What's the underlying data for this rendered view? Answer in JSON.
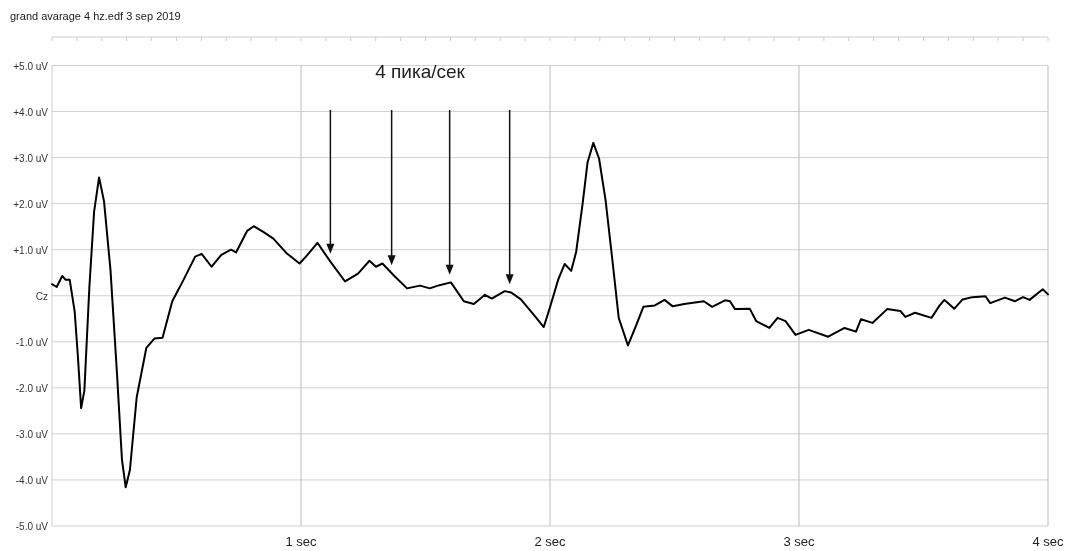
{
  "chart_data": {
    "type": "line",
    "title": "grand avarage 4 hz.edf  3 sep 2019",
    "annotations": [
      "4 пика/сек"
    ],
    "xlim": [
      0,
      4
    ],
    "xticks": [
      {
        "value": 1,
        "label": "1 sec"
      },
      {
        "value": 2,
        "label": "2 sec"
      },
      {
        "value": 3,
        "label": "3 sec"
      },
      {
        "value": 4,
        "label": "4 sec"
      }
    ],
    "ylim": [
      -5,
      5
    ],
    "yticks": [
      {
        "value": 5,
        "label": "+5.0 uV"
      },
      {
        "value": 4,
        "label": "+4.0 uV"
      },
      {
        "value": 3,
        "label": "+3.0 uV"
      },
      {
        "value": 2,
        "label": "+2.0 uV"
      },
      {
        "value": 1,
        "label": "+1.0 uV"
      },
      {
        "value": 0,
        "label": "Cz"
      },
      {
        "value": -1,
        "label": "-1.0 uV"
      },
      {
        "value": -2,
        "label": "-2.0 uV"
      },
      {
        "value": -3,
        "label": "-3.0 uV"
      },
      {
        "value": -4,
        "label": "-4.0 uV"
      },
      {
        "value": -5,
        "label": "-5.0 uV"
      }
    ],
    "grid": true,
    "marker": "none",
    "line_style": "solid",
    "series": [
      {
        "color": "#000000",
        "x": [
          0,
          0.019,
          0.041,
          0.054,
          0.071,
          0.091,
          0.104,
          0.117,
          0.13,
          0.15,
          0.169,
          0.189,
          0.209,
          0.235,
          0.261,
          0.281,
          0.296,
          0.313,
          0.34,
          0.379,
          0.411,
          0.444,
          0.483,
          0.523,
          0.575,
          0.601,
          0.641,
          0.68,
          0.719,
          0.739,
          0.784,
          0.81,
          0.85,
          0.889,
          0.941,
          0.994,
          1.02,
          1.066,
          1.118,
          1.177,
          1.229,
          1.275,
          1.301,
          1.327,
          1.373,
          1.426,
          1.478,
          1.517,
          1.556,
          1.602,
          1.654,
          1.694,
          1.739,
          1.766,
          1.818,
          1.844,
          1.883,
          1.936,
          1.975,
          2.0,
          2.033,
          2.059,
          2.085,
          2.105,
          2.131,
          2.151,
          2.174,
          2.197,
          2.223,
          2.25,
          2.276,
          2.313,
          2.342,
          2.375,
          2.421,
          2.46,
          2.493,
          2.539,
          2.618,
          2.651,
          2.703,
          2.723,
          2.743,
          2.802,
          2.828,
          2.881,
          2.914,
          2.946,
          2.986,
          3.039,
          3.117,
          3.183,
          3.229,
          3.249,
          3.295,
          3.354,
          3.407,
          3.427,
          3.466,
          3.532,
          3.565,
          3.584,
          3.624,
          3.657,
          3.696,
          3.749,
          3.768,
          3.827,
          3.867,
          3.9,
          3.926,
          3.979,
          4.0
        ],
        "values": [
          0.25,
          0.19,
          0.43,
          0.35,
          0.35,
          -0.34,
          -1.32,
          -2.44,
          -2.06,
          0.18,
          1.82,
          2.57,
          2.05,
          0.55,
          -1.69,
          -3.56,
          -4.16,
          -3.78,
          -2.21,
          -1.13,
          -0.93,
          -0.91,
          -0.12,
          0.29,
          0.85,
          0.91,
          0.63,
          0.89,
          1.0,
          0.94,
          1.41,
          1.51,
          1.38,
          1.24,
          0.93,
          0.7,
          0.85,
          1.15,
          0.74,
          0.31,
          0.48,
          0.76,
          0.63,
          0.7,
          0.44,
          0.16,
          0.22,
          0.16,
          0.23,
          0.29,
          -0.12,
          -0.18,
          0.02,
          -0.06,
          0.1,
          0.07,
          -0.08,
          -0.42,
          -0.68,
          -0.25,
          0.35,
          0.69,
          0.54,
          0.95,
          2.0,
          2.9,
          3.32,
          2.98,
          2.08,
          0.8,
          -0.48,
          -1.08,
          -0.7,
          -0.24,
          -0.21,
          -0.09,
          -0.23,
          -0.18,
          -0.12,
          -0.24,
          -0.1,
          -0.12,
          -0.29,
          -0.28,
          -0.55,
          -0.7,
          -0.48,
          -0.55,
          -0.85,
          -0.74,
          -0.89,
          -0.7,
          -0.78,
          -0.51,
          -0.59,
          -0.29,
          -0.33,
          -0.46,
          -0.37,
          -0.48,
          -0.21,
          -0.09,
          -0.28,
          -0.08,
          -0.03,
          -0.01,
          -0.16,
          -0.04,
          -0.12,
          -0.03,
          -0.09,
          0.14,
          0.03
        ]
      }
    ]
  }
}
